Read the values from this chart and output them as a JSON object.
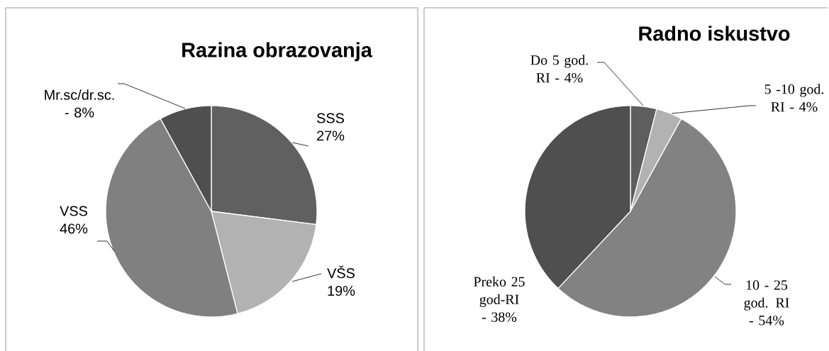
{
  "chart_data": [
    {
      "type": "pie",
      "title": "Razina obrazovanja",
      "categories": [
        "SSS",
        "VŠS",
        "VSS",
        "Mr.sc/dr.sc. -"
      ],
      "values": [
        27,
        19,
        46,
        8
      ],
      "value_labels": [
        "27%",
        "19%",
        "46%",
        "8%"
      ],
      "colors": [
        "#606060",
        "#b2b2b2",
        "#808080",
        "#4f4f4f"
      ]
    },
    {
      "type": "pie",
      "title": "Radno iskustvo",
      "categories": [
        "Do 5 god. RI -",
        "5 -10 god. RI -",
        "10 - 25 god. RI -",
        "Preko 25 god-RI -"
      ],
      "values": [
        4,
        4,
        54,
        38
      ],
      "value_labels": [
        "4%",
        "4%",
        "54%",
        "38%"
      ],
      "colors": [
        "#5e5e5e",
        "#b2b2b2",
        "#828282",
        "#4f4f4f"
      ]
    }
  ]
}
